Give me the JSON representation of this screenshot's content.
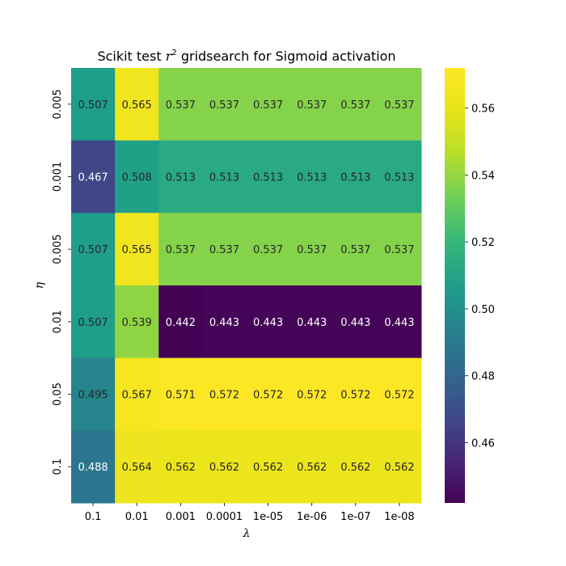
{
  "chart_data": {
    "type": "heatmap",
    "title_prefix": "Scikit test ",
    "title_symbol": "r",
    "title_sup": "2",
    "title_suffix": " gridsearch for Sigmoid activation",
    "xlabel": "λ",
    "ylabel": "η",
    "x_categories": [
      "0.1",
      "0.01",
      "0.001",
      "0.0001",
      "1e-05",
      "1e-06",
      "1e-07",
      "1e-08"
    ],
    "y_categories": [
      "0.005",
      "0.001",
      "0.005",
      "0.01",
      "0.05",
      "0.1"
    ],
    "values": [
      [
        0.507,
        0.565,
        0.537,
        0.537,
        0.537,
        0.537,
        0.537,
        0.537
      ],
      [
        0.467,
        0.508,
        0.513,
        0.513,
        0.513,
        0.513,
        0.513,
        0.513
      ],
      [
        0.507,
        0.565,
        0.537,
        0.537,
        0.537,
        0.537,
        0.537,
        0.537
      ],
      [
        0.507,
        0.539,
        0.442,
        0.443,
        0.443,
        0.443,
        0.443,
        0.443
      ],
      [
        0.495,
        0.567,
        0.571,
        0.572,
        0.572,
        0.572,
        0.572,
        0.572
      ],
      [
        0.488,
        0.564,
        0.562,
        0.562,
        0.562,
        0.562,
        0.562,
        0.562
      ]
    ],
    "colormap": "viridis",
    "vmin": 0.442,
    "vmax": 0.572,
    "colorbar_ticks": [
      "0.46",
      "0.48",
      "0.50",
      "0.52",
      "0.54",
      "0.56"
    ],
    "colorbar_tick_values": [
      0.46,
      0.48,
      0.5,
      0.52,
      0.54,
      0.56
    ]
  }
}
